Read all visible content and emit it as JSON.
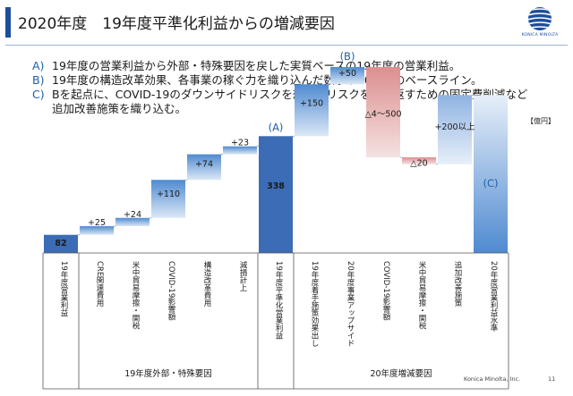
{
  "header": {
    "title": "2020年度　19年度平準化利益からの増減要因",
    "logo_text": "KONICA MINOLTA"
  },
  "notes": [
    {
      "key": "A)",
      "lines": [
        "19年度の営業利益から外部・特殊要因を戻した実質ベースの19年度の営業利益。"
      ]
    },
    {
      "key": "B)",
      "lines": [
        "19年度の構造改革効果、各事業の稼ぐ力を織り込んだ数字が20年度のベースライン。"
      ]
    },
    {
      "key": "C)",
      "lines": [
        "Bを起点に、COVID-19のダウンサイドリスクを想定、リスクを打ち返すための固定費削減など",
        "追加改善施策を織り込む。"
      ]
    }
  ],
  "unit": "【億円】",
  "colors": {
    "dark_blue": "#3b6cb5",
    "mid_blue": "#4f8ad0",
    "pale_blue": "#e2ecf7",
    "red": "#dc8f8f",
    "pale_red": "#f5e1e1",
    "marker": "#1d5fa8"
  },
  "chart_data": {
    "type": "waterfall",
    "unit": "億円",
    "categories": [
      "19年度営業利益",
      "CRE関連費用",
      "米中貿易摩擦・関税",
      "COVID-19影響額",
      "構造改革費用",
      "減損計上",
      "19年度平準化営業利益",
      "19年度着手施策効果出し",
      "20年度事業アップサイド",
      "COVID-19影響額",
      "米中貿易摩擦・関税",
      "追加改善施策",
      "20年度営業利益水準"
    ],
    "values": [
      82,
      25,
      24,
      110,
      74,
      23,
      338,
      150,
      50,
      -500,
      -20,
      200,
      null
    ],
    "kinds": [
      "total",
      "increase",
      "increase",
      "increase",
      "increase",
      "increase",
      "total",
      "increase",
      "increase",
      "decrease",
      "decrease",
      "increase",
      "total"
    ],
    "value_labels": [
      "82",
      "+25",
      "+24",
      "+110",
      "+74",
      "+23",
      "338",
      "+150",
      "+50",
      "△4～500",
      "△20",
      "+200以上",
      ""
    ],
    "markers": [
      "",
      "",
      "",
      "",
      "",
      "",
      "(A)",
      "",
      "(B)",
      "",
      "",
      "",
      "(C)"
    ],
    "groups": [
      {
        "label": "19年度外部・特殊要因",
        "from": 1,
        "to": 5
      },
      {
        "label": "20年度増減要因",
        "from": 7,
        "to": 12
      }
    ]
  },
  "footer": {
    "company": "Konica Minolta, Inc.",
    "page": "11"
  }
}
